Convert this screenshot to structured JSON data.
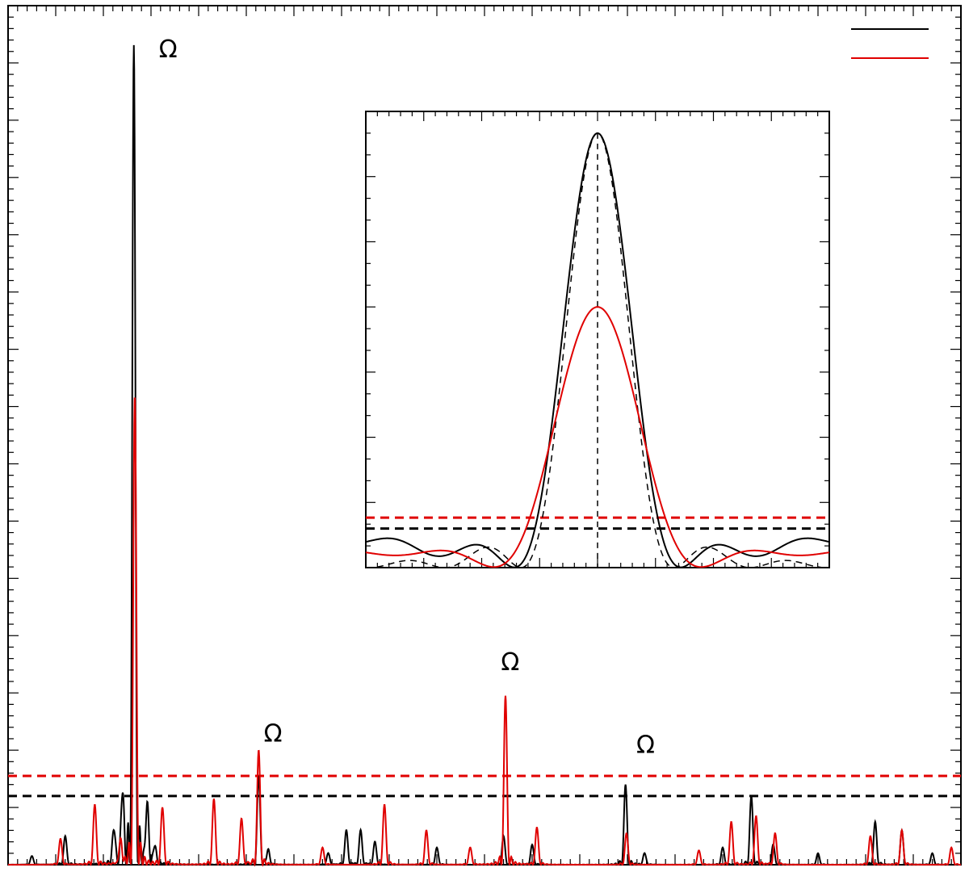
{
  "chart_data": {
    "type": "line",
    "main": {
      "xlim": [
        0,
        100
      ],
      "ylim": [
        0,
        15
      ],
      "series": [
        {
          "color": "#000000",
          "peaks": [
            {
              "x": 13.2,
              "y": 14.3
            },
            {
              "x": 12.0,
              "y": 1.2
            },
            {
              "x": 11.1,
              "y": 0.6
            },
            {
              "x": 14.6,
              "y": 1.0
            },
            {
              "x": 15.4,
              "y": 0.3
            },
            {
              "x": 26.3,
              "y": 1.55
            },
            {
              "x": 27.3,
              "y": 0.25
            },
            {
              "x": 33.6,
              "y": 0.2
            },
            {
              "x": 35.5,
              "y": 0.6
            },
            {
              "x": 37.0,
              "y": 0.6
            },
            {
              "x": 38.5,
              "y": 0.4
            },
            {
              "x": 45.0,
              "y": 0.3
            },
            {
              "x": 52.0,
              "y": 0.5
            },
            {
              "x": 55.0,
              "y": 0.35
            },
            {
              "x": 64.8,
              "y": 1.4
            },
            {
              "x": 66.8,
              "y": 0.2
            },
            {
              "x": 78.0,
              "y": 1.2
            },
            {
              "x": 75.0,
              "y": 0.3
            },
            {
              "x": 80.3,
              "y": 0.35
            },
            {
              "x": 85.0,
              "y": 0.2
            },
            {
              "x": 91.0,
              "y": 0.75
            },
            {
              "x": 93.8,
              "y": 0.6
            },
            {
              "x": 97.0,
              "y": 0.2
            },
            {
              "x": 6.0,
              "y": 0.5
            },
            {
              "x": 2.5,
              "y": 0.15
            }
          ]
        },
        {
          "color": "#e00000",
          "peaks": [
            {
              "x": 13.3,
              "y": 8.2
            },
            {
              "x": 9.1,
              "y": 1.05
            },
            {
              "x": 11.8,
              "y": 0.4
            },
            {
              "x": 16.2,
              "y": 1.0
            },
            {
              "x": 21.6,
              "y": 1.15
            },
            {
              "x": 24.5,
              "y": 0.8
            },
            {
              "x": 26.3,
              "y": 2.0
            },
            {
              "x": 39.5,
              "y": 1.05
            },
            {
              "x": 43.9,
              "y": 0.6
            },
            {
              "x": 48.5,
              "y": 0.3
            },
            {
              "x": 52.2,
              "y": 2.95
            },
            {
              "x": 55.5,
              "y": 0.65
            },
            {
              "x": 64.9,
              "y": 0.55
            },
            {
              "x": 72.5,
              "y": 0.25
            },
            {
              "x": 75.9,
              "y": 0.75
            },
            {
              "x": 78.5,
              "y": 0.85
            },
            {
              "x": 80.5,
              "y": 0.55
            },
            {
              "x": 90.5,
              "y": 0.5
            },
            {
              "x": 93.8,
              "y": 0.6
            },
            {
              "x": 99.0,
              "y": 0.3
            },
            {
              "x": 5.5,
              "y": 0.45
            },
            {
              "x": 33.0,
              "y": 0.3
            }
          ]
        }
      ],
      "thresholds": [
        {
          "color": "#e00000",
          "y": 1.55
        },
        {
          "color": "#000000",
          "y": 1.2
        }
      ],
      "annotations": [
        {
          "text": "Ω",
          "x": 16.8,
          "y": 14.1
        },
        {
          "text": "Ω",
          "x": 27.8,
          "y": 2.15
        },
        {
          "text": "Ω",
          "x": 52.7,
          "y": 3.4
        },
        {
          "text": "Ω",
          "x": 66.9,
          "y": 1.95
        }
      ],
      "legend": {
        "placement": "top-right",
        "entries": [
          {
            "label": "",
            "color": "#000000"
          },
          {
            "label": "",
            "color": "#e00000"
          }
        ]
      }
    },
    "inset": {
      "xlim": [
        -1,
        1
      ],
      "ylim": [
        0,
        1.05
      ],
      "curves": [
        {
          "color": "#000000",
          "style": "solid",
          "amplitude": 1.0,
          "width": 0.36,
          "sidelobe": 0.09
        },
        {
          "color": "#000000",
          "style": "dashed",
          "amplitude": 1.0,
          "width": 0.33,
          "sidelobe": 0.0
        },
        {
          "color": "#e00000",
          "style": "solid",
          "amplitude": 0.6,
          "width": 0.45,
          "sidelobe": 0.05
        }
      ],
      "thresholds": [
        {
          "color": "#e00000",
          "y": 0.115
        },
        {
          "color": "#000000",
          "y": 0.09
        }
      ],
      "center_line_x": 0
    }
  }
}
